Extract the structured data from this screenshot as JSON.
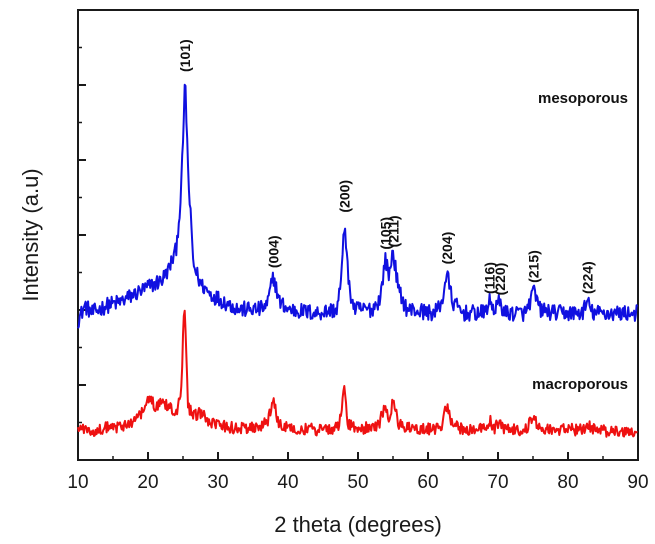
{
  "chart_data": {
    "type": "line",
    "title": "",
    "xlabel": "2 theta (degrees)",
    "ylabel": "Intensity (a.u)",
    "xlim": [
      10,
      90
    ],
    "x_ticks": [
      "10",
      "20",
      "30",
      "40",
      "50",
      "60",
      "70",
      "80",
      "90"
    ],
    "grid": false,
    "colors": {
      "mesoporous": "#1010e0",
      "macroporous": "#ee1111"
    },
    "series": [
      {
        "name": "mesoporous",
        "baseline": 0.37,
        "points": [
          [
            10,
            0.35
          ],
          [
            11,
            0.39
          ],
          [
            12,
            0.37
          ],
          [
            14,
            0.39
          ],
          [
            16,
            0.4
          ],
          [
            18,
            0.42
          ],
          [
            20,
            0.44
          ],
          [
            22,
            0.46
          ],
          [
            23,
            0.49
          ],
          [
            24,
            0.54
          ],
          [
            24.7,
            0.68
          ],
          [
            25.3,
            1.0
          ],
          [
            25.8,
            0.72
          ],
          [
            26.5,
            0.5
          ],
          [
            27.5,
            0.45
          ],
          [
            29,
            0.42
          ],
          [
            31,
            0.4
          ],
          [
            33,
            0.38
          ],
          [
            36,
            0.38
          ],
          [
            37,
            0.39
          ],
          [
            37.9,
            0.47
          ],
          [
            38.8,
            0.4
          ],
          [
            40,
            0.38
          ],
          [
            44,
            0.37
          ],
          [
            47,
            0.38
          ],
          [
            47.6,
            0.46
          ],
          [
            48.1,
            0.62
          ],
          [
            48.7,
            0.44
          ],
          [
            49.5,
            0.38
          ],
          [
            52,
            0.38
          ],
          [
            53.2,
            0.41
          ],
          [
            53.9,
            0.52
          ],
          [
            54.4,
            0.47
          ],
          [
            55.0,
            0.54
          ],
          [
            55.8,
            0.43
          ],
          [
            57,
            0.38
          ],
          [
            61,
            0.37
          ],
          [
            62,
            0.4
          ],
          [
            62.7,
            0.48
          ],
          [
            63.5,
            0.4
          ],
          [
            65,
            0.37
          ],
          [
            68,
            0.37
          ],
          [
            68.8,
            0.4
          ],
          [
            69.5,
            0.38
          ],
          [
            70.2,
            0.4
          ],
          [
            71,
            0.37
          ],
          [
            74,
            0.37
          ],
          [
            75.1,
            0.43
          ],
          [
            76,
            0.38
          ],
          [
            78,
            0.37
          ],
          [
            82,
            0.37
          ],
          [
            82.8,
            0.4
          ],
          [
            83.5,
            0.37
          ],
          [
            86,
            0.37
          ],
          [
            90,
            0.37
          ]
        ],
        "peaks": [
          {
            "x": 25.3,
            "hkl": "(101)"
          },
          {
            "x": 37.9,
            "hkl": "(004)"
          },
          {
            "x": 48.1,
            "hkl": "(200)"
          },
          {
            "x": 53.9,
            "hkl": "(105)"
          },
          {
            "x": 55.1,
            "hkl": "(211)"
          },
          {
            "x": 62.7,
            "hkl": "(204)"
          },
          {
            "x": 68.8,
            "hkl": "(116)"
          },
          {
            "x": 70.3,
            "hkl": "(220)"
          },
          {
            "x": 75.1,
            "hkl": "(215)"
          },
          {
            "x": 82.8,
            "hkl": "(224)"
          }
        ]
      },
      {
        "name": "macroporous",
        "baseline": 0.055,
        "points": [
          [
            10,
            0.06
          ],
          [
            12,
            0.05
          ],
          [
            14,
            0.06
          ],
          [
            16,
            0.06
          ],
          [
            18,
            0.08
          ],
          [
            19.5,
            0.11
          ],
          [
            20.2,
            0.14
          ],
          [
            21,
            0.12
          ],
          [
            22,
            0.13
          ],
          [
            23,
            0.12
          ],
          [
            24,
            0.1
          ],
          [
            24.7,
            0.15
          ],
          [
            25.2,
            0.4
          ],
          [
            25.7,
            0.12
          ],
          [
            26.5,
            0.09
          ],
          [
            27.5,
            0.1
          ],
          [
            29,
            0.07
          ],
          [
            32,
            0.06
          ],
          [
            36,
            0.06
          ],
          [
            37.2,
            0.08
          ],
          [
            37.9,
            0.14
          ],
          [
            38.6,
            0.07
          ],
          [
            40,
            0.06
          ],
          [
            44,
            0.055
          ],
          [
            47,
            0.06
          ],
          [
            47.6,
            0.09
          ],
          [
            48.0,
            0.17
          ],
          [
            48.6,
            0.07
          ],
          [
            50,
            0.055
          ],
          [
            53,
            0.07
          ],
          [
            53.8,
            0.12
          ],
          [
            54.4,
            0.09
          ],
          [
            55.0,
            0.13
          ],
          [
            55.8,
            0.07
          ],
          [
            57,
            0.06
          ],
          [
            61,
            0.055
          ],
          [
            62,
            0.07
          ],
          [
            62.7,
            0.12
          ],
          [
            63.4,
            0.07
          ],
          [
            65,
            0.055
          ],
          [
            68,
            0.06
          ],
          [
            68.8,
            0.08
          ],
          [
            69.5,
            0.06
          ],
          [
            70.2,
            0.08
          ],
          [
            71,
            0.055
          ],
          [
            74,
            0.055
          ],
          [
            75.0,
            0.09
          ],
          [
            76,
            0.06
          ],
          [
            78,
            0.055
          ],
          [
            82,
            0.055
          ],
          [
            82.8,
            0.07
          ],
          [
            83.5,
            0.055
          ],
          [
            86,
            0.05
          ],
          [
            90,
            0.05
          ]
        ]
      }
    ]
  }
}
